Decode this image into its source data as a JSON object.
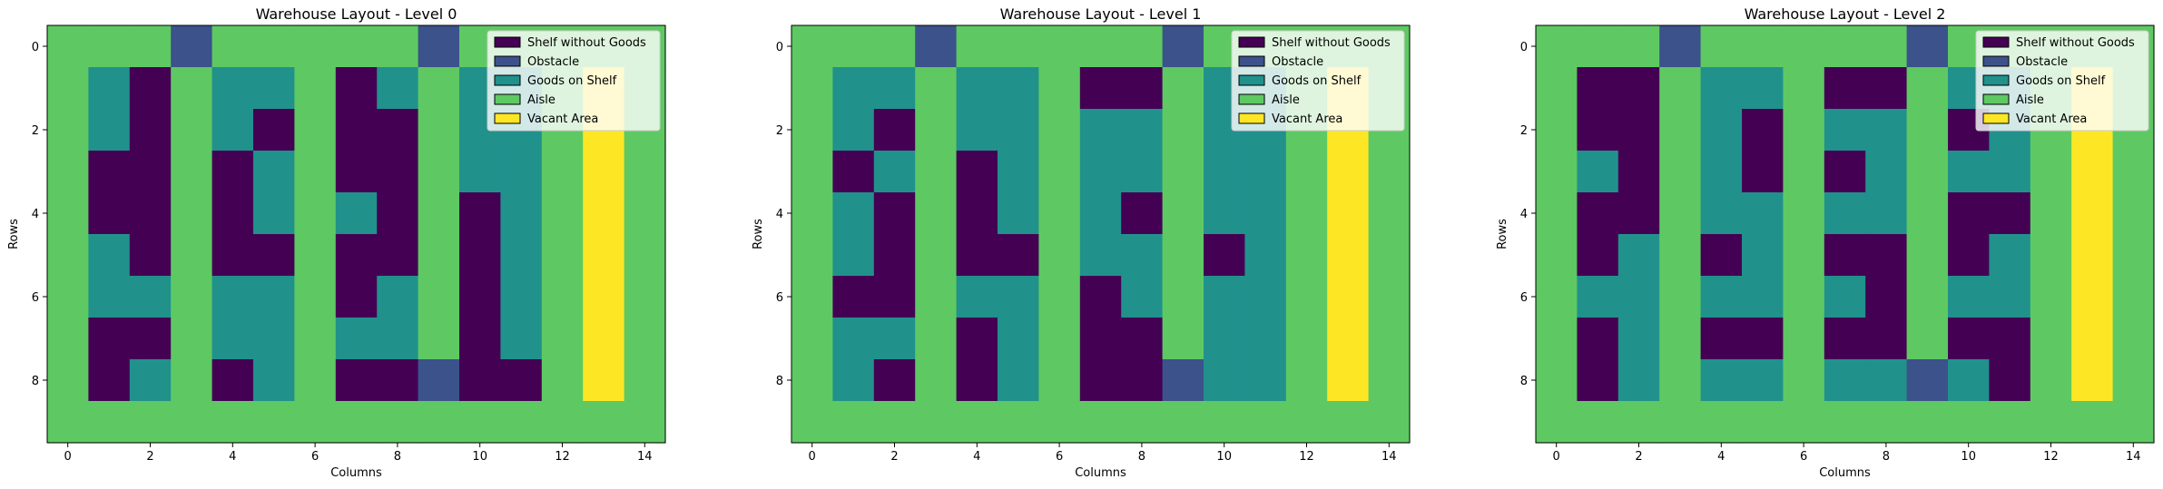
{
  "legend_placement": "top-right",
  "colors": {
    "0": "#440154",
    "1": "#3b528b",
    "2": "#21918c",
    "3": "#5ec962",
    "4": "#fde725"
  },
  "chart_data": [
    {
      "type": "heatmap",
      "title": "Warehouse Layout - Level 0",
      "xlabel": "Columns",
      "ylabel": "Rows",
      "xticks": [
        0,
        2,
        4,
        6,
        8,
        10,
        12,
        14
      ],
      "yticks": [
        0,
        2,
        4,
        6,
        8
      ],
      "xlim": [
        -0.5,
        14.5
      ],
      "ylim": [
        9.5,
        -0.5
      ],
      "legend": [
        {
          "label": "Shelf without Goods",
          "value": 0
        },
        {
          "label": "Obstacle",
          "value": 1
        },
        {
          "label": "Goods on Shelf",
          "value": 2
        },
        {
          "label": "Aisle",
          "value": 3
        },
        {
          "label": "Vacant Area",
          "value": 4
        }
      ],
      "grid": [
        [
          3,
          3,
          3,
          1,
          3,
          3,
          3,
          3,
          3,
          1,
          3,
          3,
          3,
          3,
          3
        ],
        [
          3,
          2,
          0,
          3,
          2,
          2,
          3,
          0,
          2,
          3,
          2,
          2,
          3,
          4,
          3
        ],
        [
          3,
          2,
          0,
          3,
          2,
          0,
          3,
          0,
          0,
          3,
          2,
          2,
          3,
          4,
          3
        ],
        [
          3,
          0,
          0,
          3,
          0,
          2,
          3,
          0,
          0,
          3,
          2,
          2,
          3,
          4,
          3
        ],
        [
          3,
          0,
          0,
          3,
          0,
          2,
          3,
          2,
          0,
          3,
          0,
          2,
          3,
          4,
          3
        ],
        [
          3,
          2,
          0,
          3,
          0,
          0,
          3,
          0,
          0,
          3,
          0,
          2,
          3,
          4,
          3
        ],
        [
          3,
          2,
          2,
          3,
          2,
          2,
          3,
          0,
          2,
          3,
          0,
          2,
          3,
          4,
          3
        ],
        [
          3,
          0,
          0,
          3,
          2,
          2,
          3,
          2,
          2,
          3,
          0,
          2,
          3,
          4,
          3
        ],
        [
          3,
          0,
          2,
          3,
          0,
          2,
          3,
          0,
          0,
          1,
          0,
          0,
          3,
          4,
          3
        ],
        [
          3,
          3,
          3,
          3,
          3,
          3,
          3,
          3,
          3,
          3,
          3,
          3,
          3,
          3,
          3
        ]
      ]
    },
    {
      "type": "heatmap",
      "title": "Warehouse Layout - Level 1",
      "xlabel": "Columns",
      "ylabel": "Rows",
      "xticks": [
        0,
        2,
        4,
        6,
        8,
        10,
        12,
        14
      ],
      "yticks": [
        0,
        2,
        4,
        6,
        8
      ],
      "xlim": [
        -0.5,
        14.5
      ],
      "ylim": [
        9.5,
        -0.5
      ],
      "legend": [
        {
          "label": "Shelf without Goods",
          "value": 0
        },
        {
          "label": "Obstacle",
          "value": 1
        },
        {
          "label": "Goods on Shelf",
          "value": 2
        },
        {
          "label": "Aisle",
          "value": 3
        },
        {
          "label": "Vacant Area",
          "value": 4
        }
      ],
      "grid": [
        [
          3,
          3,
          3,
          1,
          3,
          3,
          3,
          3,
          3,
          1,
          3,
          3,
          3,
          3,
          3
        ],
        [
          3,
          2,
          2,
          3,
          2,
          2,
          3,
          0,
          0,
          3,
          2,
          2,
          3,
          4,
          3
        ],
        [
          3,
          2,
          0,
          3,
          2,
          2,
          3,
          2,
          2,
          3,
          2,
          2,
          3,
          4,
          3
        ],
        [
          3,
          0,
          2,
          3,
          0,
          2,
          3,
          2,
          2,
          3,
          2,
          2,
          3,
          4,
          3
        ],
        [
          3,
          2,
          0,
          3,
          0,
          2,
          3,
          2,
          0,
          3,
          2,
          2,
          3,
          4,
          3
        ],
        [
          3,
          2,
          0,
          3,
          0,
          0,
          3,
          2,
          2,
          3,
          0,
          2,
          3,
          4,
          3
        ],
        [
          3,
          0,
          0,
          3,
          2,
          2,
          3,
          0,
          2,
          3,
          2,
          2,
          3,
          4,
          3
        ],
        [
          3,
          2,
          2,
          3,
          0,
          2,
          3,
          0,
          0,
          3,
          2,
          2,
          3,
          4,
          3
        ],
        [
          3,
          2,
          0,
          3,
          0,
          2,
          3,
          0,
          0,
          1,
          2,
          2,
          3,
          4,
          3
        ],
        [
          3,
          3,
          3,
          3,
          3,
          3,
          3,
          3,
          3,
          3,
          3,
          3,
          3,
          3,
          3
        ]
      ]
    },
    {
      "type": "heatmap",
      "title": "Warehouse Layout - Level 2",
      "xlabel": "Columns",
      "ylabel": "Rows",
      "xticks": [
        0,
        2,
        4,
        6,
        8,
        10,
        12,
        14
      ],
      "yticks": [
        0,
        2,
        4,
        6,
        8
      ],
      "xlim": [
        -0.5,
        14.5
      ],
      "ylim": [
        9.5,
        -0.5
      ],
      "legend": [
        {
          "label": "Shelf without Goods",
          "value": 0
        },
        {
          "label": "Obstacle",
          "value": 1
        },
        {
          "label": "Goods on Shelf",
          "value": 2
        },
        {
          "label": "Aisle",
          "value": 3
        },
        {
          "label": "Vacant Area",
          "value": 4
        }
      ],
      "grid": [
        [
          3,
          3,
          3,
          1,
          3,
          3,
          3,
          3,
          3,
          1,
          3,
          3,
          3,
          3,
          3
        ],
        [
          3,
          0,
          0,
          3,
          2,
          2,
          3,
          0,
          0,
          3,
          2,
          2,
          3,
          4,
          3
        ],
        [
          3,
          0,
          0,
          3,
          2,
          0,
          3,
          2,
          2,
          3,
          0,
          2,
          3,
          4,
          3
        ],
        [
          3,
          2,
          0,
          3,
          2,
          0,
          3,
          0,
          2,
          3,
          2,
          2,
          3,
          4,
          3
        ],
        [
          3,
          0,
          0,
          3,
          2,
          2,
          3,
          2,
          2,
          3,
          0,
          0,
          3,
          4,
          3
        ],
        [
          3,
          0,
          2,
          3,
          0,
          2,
          3,
          0,
          0,
          3,
          0,
          2,
          3,
          4,
          3
        ],
        [
          3,
          2,
          2,
          3,
          2,
          2,
          3,
          2,
          0,
          3,
          2,
          2,
          3,
          4,
          3
        ],
        [
          3,
          0,
          2,
          3,
          0,
          0,
          3,
          0,
          0,
          3,
          0,
          0,
          3,
          4,
          3
        ],
        [
          3,
          0,
          2,
          3,
          2,
          2,
          3,
          2,
          2,
          1,
          2,
          0,
          3,
          4,
          3
        ],
        [
          3,
          3,
          3,
          3,
          3,
          3,
          3,
          3,
          3,
          3,
          3,
          3,
          3,
          3,
          3
        ]
      ]
    }
  ]
}
